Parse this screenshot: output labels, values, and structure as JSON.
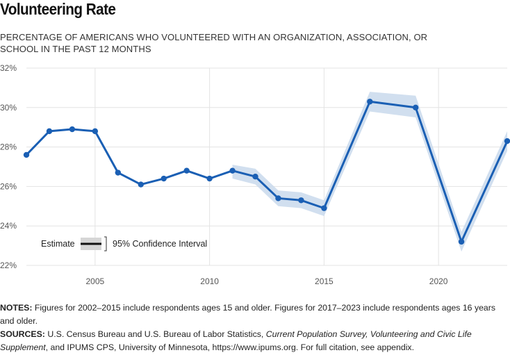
{
  "title": "Volunteering Rate",
  "subtitle": "PERCENTAGE OF AMERICANS WHO VOLUNTEERED WITH AN ORGANIZATION, ASSOCIATION, OR SCHOOL IN THE PAST 12 MONTHS",
  "notes": {
    "notes_label": "NOTES:",
    "notes_text": " Figures for 2002–2015 include respondents ages 15 and older. Figures for 2017–2023 include respondents ages 16 years and older.",
    "sources_label": "SOURCES:",
    "sources_pre": " U.S. Census Bureau and U.S. Bureau of Labor Statistics, ",
    "sources_italic": "Current Population Survey, Volunteering and Civic Life Supplement",
    "sources_post": ", and IPUMS CPS, University of Minnesota, https://www.ipums.org. For full citation, see appendix."
  },
  "colors": {
    "line": "#1a5fb4",
    "band": "#c9d9ec",
    "grid": "#e3e3e3",
    "legend_band": "#d6d6d6"
  },
  "chart_data": {
    "type": "line",
    "x": [
      2002,
      2003,
      2004,
      2005,
      2006,
      2007,
      2008,
      2009,
      2010,
      2011,
      2012,
      2013,
      2014,
      2015,
      2017,
      2019,
      2021,
      2023
    ],
    "series": [
      {
        "name": "Estimate",
        "values": [
          27.6,
          28.8,
          28.9,
          28.8,
          26.7,
          26.1,
          26.4,
          26.8,
          26.4,
          26.8,
          26.5,
          25.4,
          25.3,
          24.9,
          30.3,
          30.0,
          23.2,
          28.3
        ]
      }
    ],
    "confidence_interval": {
      "name": "95% Confidence Interval",
      "x": [
        2011,
        2012,
        2013,
        2014,
        2015,
        2017,
        2019,
        2021,
        2023
      ],
      "lower": [
        26.4,
        26.1,
        25.0,
        24.9,
        24.5,
        29.8,
        29.5,
        22.7,
        27.8
      ],
      "upper": [
        27.1,
        26.9,
        25.8,
        25.7,
        25.3,
        30.8,
        30.6,
        23.7,
        28.8
      ]
    },
    "xticks": [
      2005,
      2010,
      2015,
      2020
    ],
    "xlim": [
      2002,
      2023
    ],
    "yticks": [
      22,
      24,
      26,
      28,
      30,
      32
    ],
    "ytick_labels": [
      "22%",
      "24%",
      "26%",
      "28%",
      "30%",
      "32%"
    ],
    "ylim": [
      22,
      32
    ],
    "grid": true,
    "legend": {
      "placement": "bottom-left",
      "estimate_label": "Estimate",
      "ci_label": "95% Confidence Interval"
    }
  }
}
